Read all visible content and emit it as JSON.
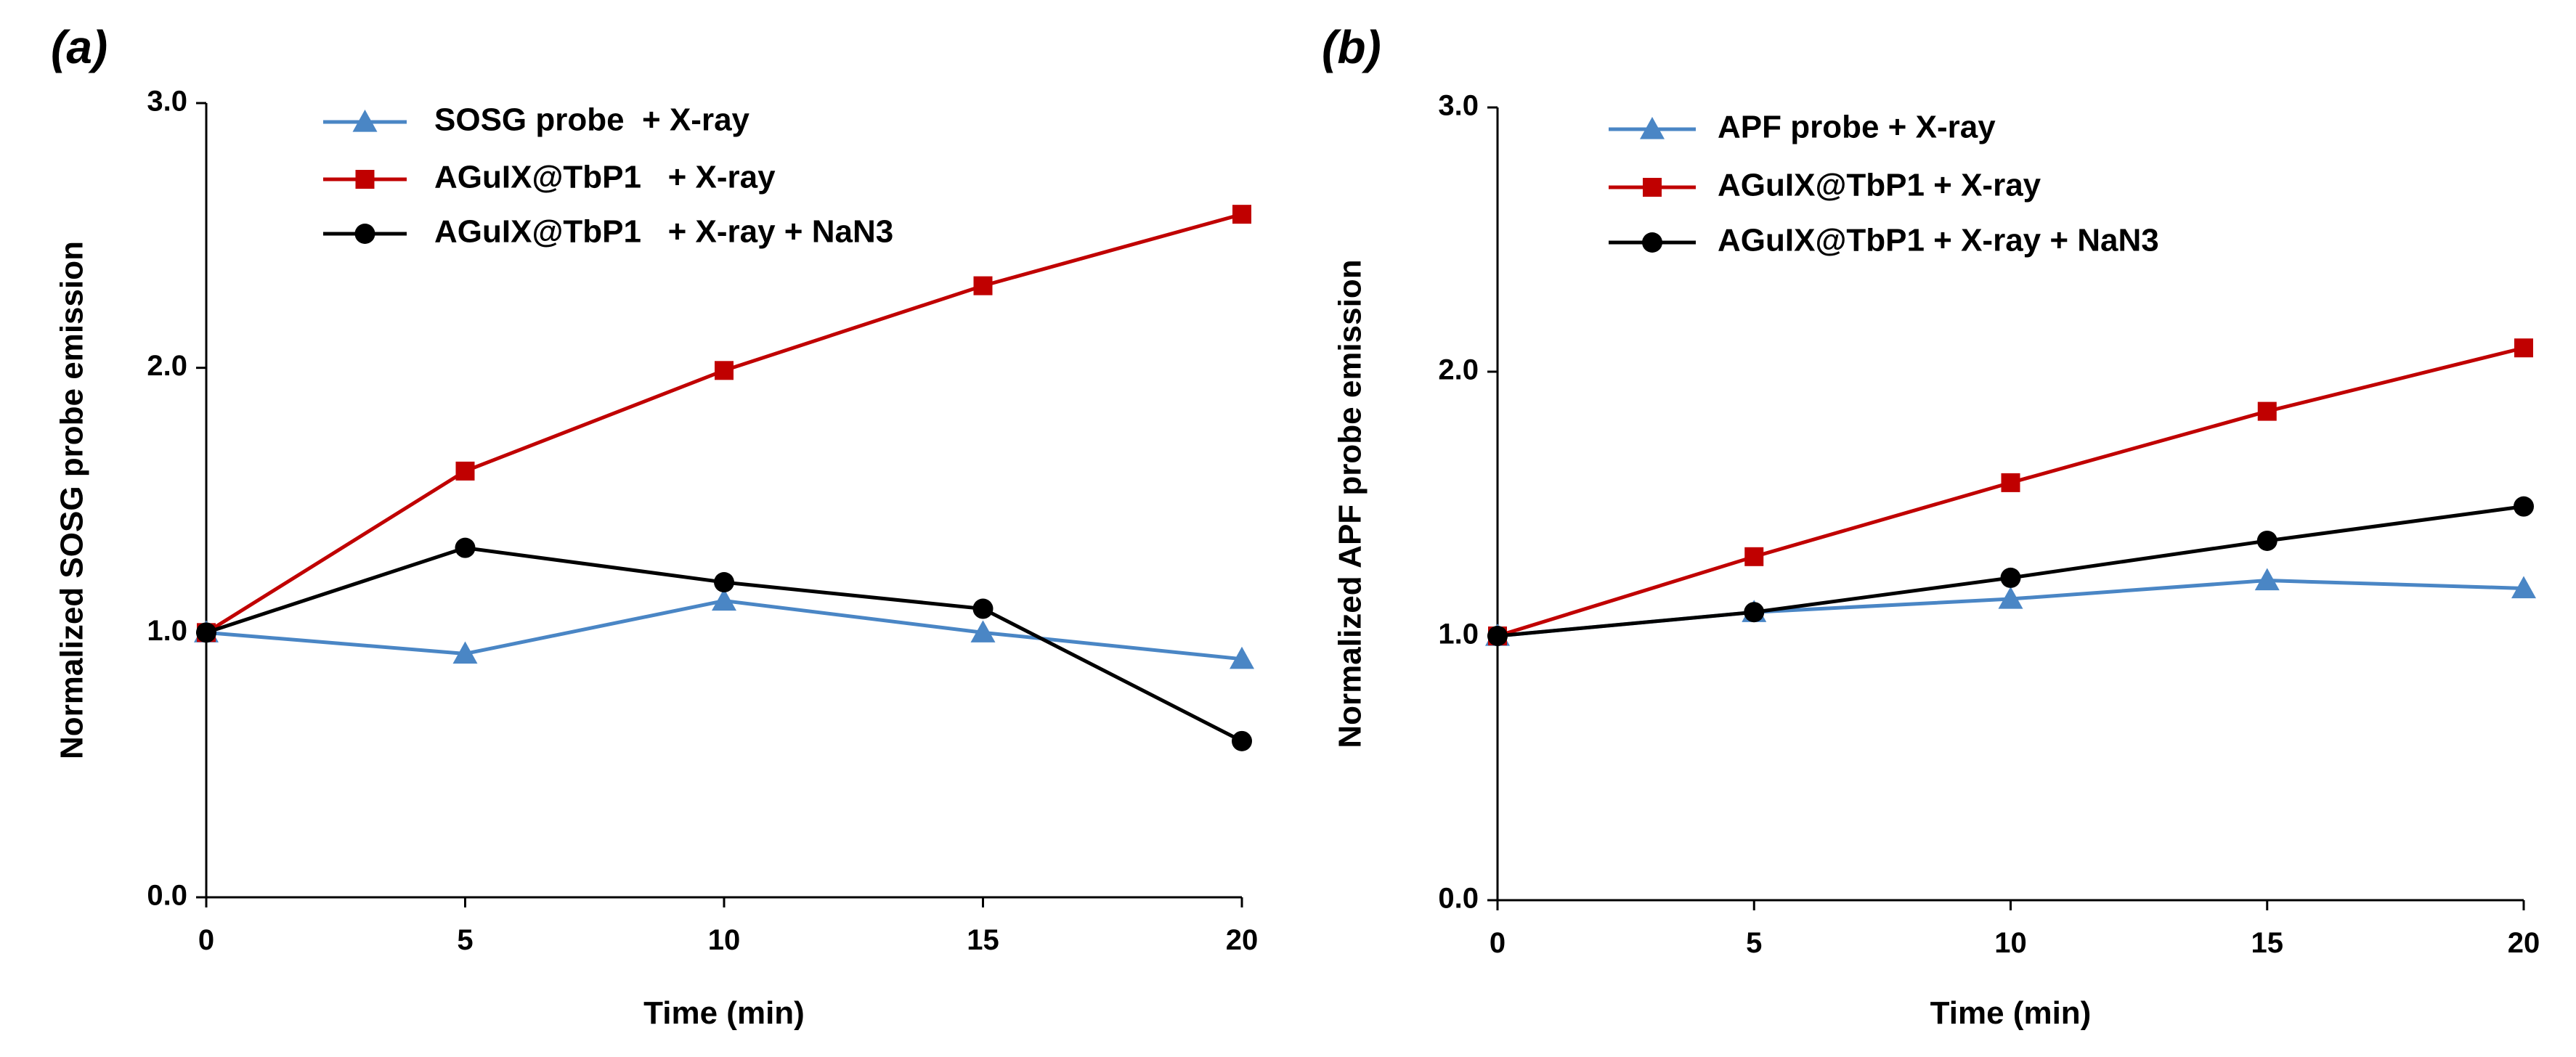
{
  "chart_data": [
    {
      "type": "line",
      "panel_label": "(a)",
      "xlabel": "Time  (min)",
      "ylabel": "Normalized  SOSG probe  emission",
      "x": [
        0,
        5,
        10,
        15,
        20
      ],
      "xlim": [
        0,
        20
      ],
      "ylim": [
        0,
        3
      ],
      "xticks": [
        "0",
        "5",
        "10",
        "15",
        "20"
      ],
      "yticks": [
        "0.0",
        "1.0",
        "2.0",
        "3.0"
      ],
      "grid": false,
      "legend_position": "top-center",
      "series": [
        {
          "name": "SOSG probe  + X-ray",
          "color": "#4a86c5",
          "marker": "triangle",
          "values": [
            1.0,
            0.92,
            1.12,
            1.0,
            0.9
          ]
        },
        {
          "name": "AGuIX@TbP1   + X-ray",
          "color": "#c00000",
          "marker": "square",
          "values": [
            1.0,
            1.61,
            1.99,
            2.31,
            2.58
          ]
        },
        {
          "name": "AGuIX@TbP1   + X-ray + NaN3",
          "color": "#000000",
          "marker": "circle",
          "values": [
            1.0,
            1.32,
            1.19,
            1.09,
            0.59
          ]
        }
      ]
    },
    {
      "type": "line",
      "panel_label": "(b)",
      "xlabel": "Time  (min)",
      "ylabel": "Normalized  APF  probe  emission",
      "x": [
        0,
        5,
        10,
        15,
        20
      ],
      "xlim": [
        0,
        20
      ],
      "ylim": [
        0,
        3
      ],
      "xticks": [
        "0",
        "5",
        "10",
        "15",
        "20"
      ],
      "yticks": [
        "0.0",
        "1.0",
        "2.0",
        "3.0"
      ],
      "grid": false,
      "legend_position": "top-left",
      "series": [
        {
          "name": "APF probe + X-ray",
          "color": "#4a86c5",
          "marker": "triangle",
          "values": [
            1.0,
            1.09,
            1.14,
            1.21,
            1.18
          ]
        },
        {
          "name": "AGuIX@TbP1 + X-ray",
          "color": "#c00000",
          "marker": "square",
          "values": [
            1.0,
            1.3,
            1.58,
            1.85,
            2.09
          ]
        },
        {
          "name": "AGuIX@TbP1 + X-ray + NaN3",
          "color": "#000000",
          "marker": "circle",
          "values": [
            1.0,
            1.09,
            1.22,
            1.36,
            1.49
          ]
        }
      ]
    }
  ]
}
